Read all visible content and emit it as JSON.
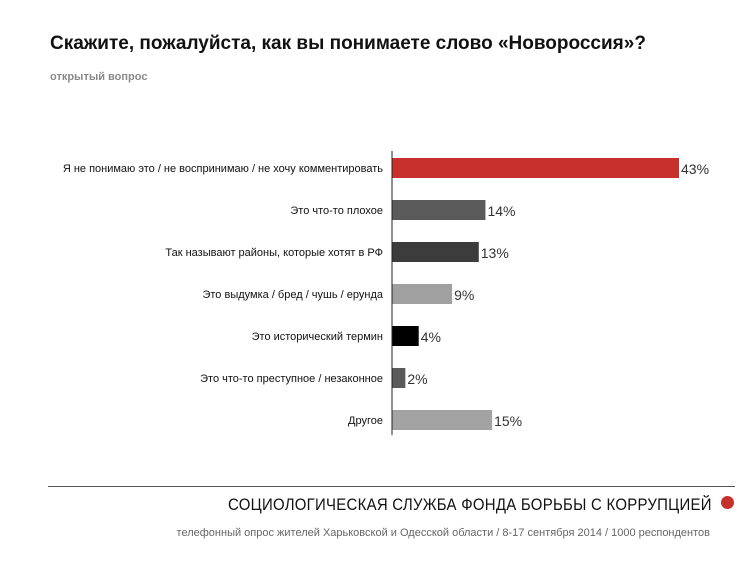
{
  "chart_data": {
    "type": "bar",
    "orientation": "horizontal",
    "title": "Скажите, пожалуйста, как вы понимаете слово «Новороссия»?",
    "subtitle": "открытый вопрос",
    "categories": [
      "Я не понимаю это / не воспринимаю / не хочу комментировать",
      "Это что-то плохое",
      "Так называют районы, которые хотят в РФ",
      "Это выдумка / бред / чушь / ерунда",
      "Это исторический термин",
      "Это что-то преступное / незаконное",
      "Другое"
    ],
    "values": [
      43,
      14,
      13,
      9,
      4,
      2,
      15
    ],
    "value_labels": [
      "43%",
      "14%",
      "13%",
      "9%",
      "4%",
      "2%",
      "15%"
    ],
    "colors": [
      "#c8302b",
      "#5a5a5a",
      "#3c3c3c",
      "#a0a0a0",
      "#000000",
      "#5a5a5a",
      "#a3a3a3"
    ],
    "xlim": [
      0,
      50
    ],
    "xlabel": "",
    "ylabel": "",
    "grid": false
  },
  "footer": {
    "organization": "СОЦИОЛОГИЧЕСКАЯ СЛУЖБА ФОНДА БОРЬБЫ С КОРРУПЦИЕЙ",
    "note": "телефонный опрос жителей Харьковской и Одесской области / 8-17 сентября 2014 / 1000 респондентов",
    "accent": "#c8302b"
  }
}
